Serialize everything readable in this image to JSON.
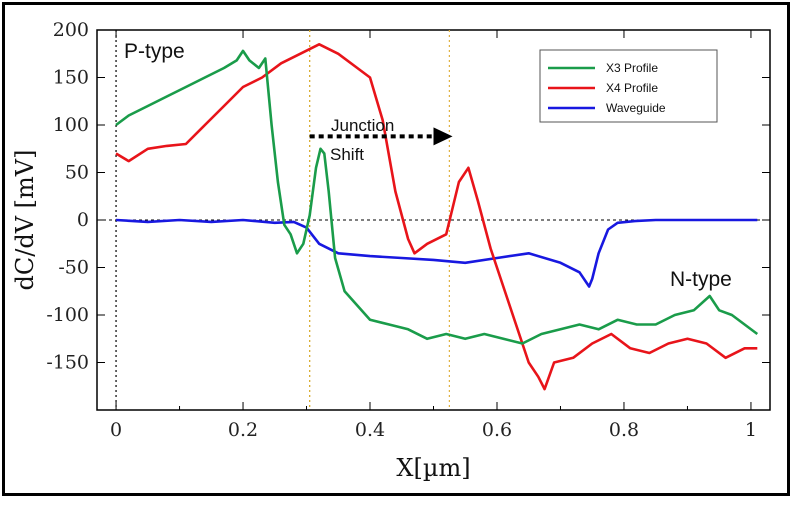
{
  "chart_data": {
    "type": "line",
    "title": "",
    "xlabel": "X[µm]",
    "ylabel": "dC/dV [mV]",
    "xlim": [
      -0.03,
      1.03
    ],
    "ylim": [
      -200,
      200
    ],
    "xticks": [
      0,
      0.2,
      0.4,
      0.6,
      0.8,
      1
    ],
    "xtick_labels": [
      "0",
      "0.2",
      "0.4",
      "0.6",
      "0.8",
      "1"
    ],
    "yticks": [
      200,
      150,
      100,
      50,
      0,
      -50,
      -100,
      -150
    ],
    "ytick_labels": [
      "200",
      "150",
      "100",
      "50",
      "0",
      "-50",
      "-100",
      "-150"
    ],
    "grid": false,
    "legend_position": "top-right",
    "annotations": {
      "p_type": "P-type",
      "n_type": "N-type",
      "junction": "Junction",
      "shift": "Shift"
    },
    "reference_lines": {
      "x": [
        0,
        0.305,
        0.525
      ],
      "y": [
        0
      ]
    },
    "series": [
      {
        "name": "X3 Profile",
        "color": "#1a9c4a",
        "x": [
          0,
          0.02,
          0.05,
          0.08,
          0.11,
          0.14,
          0.17,
          0.19,
          0.2,
          0.21,
          0.225,
          0.235,
          0.245,
          0.255,
          0.265,
          0.275,
          0.285,
          0.295,
          0.305,
          0.315,
          0.322,
          0.328,
          0.335,
          0.345,
          0.36,
          0.38,
          0.4,
          0.43,
          0.46,
          0.49,
          0.52,
          0.55,
          0.58,
          0.61,
          0.64,
          0.67,
          0.7,
          0.73,
          0.76,
          0.79,
          0.82,
          0.85,
          0.88,
          0.91,
          0.935,
          0.95,
          0.97,
          0.99,
          1.01
        ],
        "values": [
          100,
          110,
          120,
          130,
          140,
          150,
          160,
          168,
          178,
          168,
          160,
          170,
          100,
          40,
          -5,
          -15,
          -35,
          -25,
          5,
          55,
          75,
          70,
          30,
          -40,
          -75,
          -90,
          -105,
          -110,
          -115,
          -125,
          -120,
          -125,
          -120,
          -125,
          -130,
          -120,
          -115,
          -110,
          -115,
          -105,
          -110,
          -110,
          -100,
          -95,
          -80,
          -95,
          -100,
          -110,
          -120
        ]
      },
      {
        "name": "X4 Profile",
        "color": "#e8141a",
        "x": [
          0,
          0.02,
          0.05,
          0.08,
          0.11,
          0.14,
          0.17,
          0.2,
          0.23,
          0.26,
          0.29,
          0.32,
          0.35,
          0.38,
          0.4,
          0.42,
          0.44,
          0.46,
          0.47,
          0.49,
          0.52,
          0.54,
          0.555,
          0.57,
          0.59,
          0.61,
          0.63,
          0.65,
          0.665,
          0.675,
          0.69,
          0.72,
          0.75,
          0.78,
          0.81,
          0.84,
          0.87,
          0.9,
          0.93,
          0.96,
          0.99,
          1.01
        ],
        "values": [
          70,
          62,
          75,
          78,
          80,
          100,
          120,
          140,
          150,
          165,
          175,
          185,
          175,
          160,
          150,
          105,
          30,
          -20,
          -35,
          -25,
          -15,
          40,
          55,
          20,
          -30,
          -70,
          -110,
          -150,
          -165,
          -178,
          -150,
          -145,
          -130,
          -120,
          -135,
          -140,
          -130,
          -125,
          -130,
          -145,
          -135,
          -135
        ]
      },
      {
        "name": "Waveguide",
        "color": "#1818e0",
        "x": [
          0,
          0.05,
          0.1,
          0.15,
          0.2,
          0.25,
          0.28,
          0.3,
          0.32,
          0.35,
          0.4,
          0.45,
          0.5,
          0.55,
          0.6,
          0.65,
          0.7,
          0.73,
          0.745,
          0.75,
          0.76,
          0.775,
          0.79,
          0.82,
          0.85,
          0.9,
          0.95,
          1.0,
          1.01
        ],
        "values": [
          0,
          -2,
          0,
          -2,
          0,
          -3,
          -2,
          -8,
          -25,
          -35,
          -38,
          -40,
          -42,
          -45,
          -40,
          -35,
          -45,
          -55,
          -70,
          -62,
          -35,
          -10,
          -3,
          -1,
          0,
          0,
          0,
          0,
          0
        ]
      }
    ]
  }
}
